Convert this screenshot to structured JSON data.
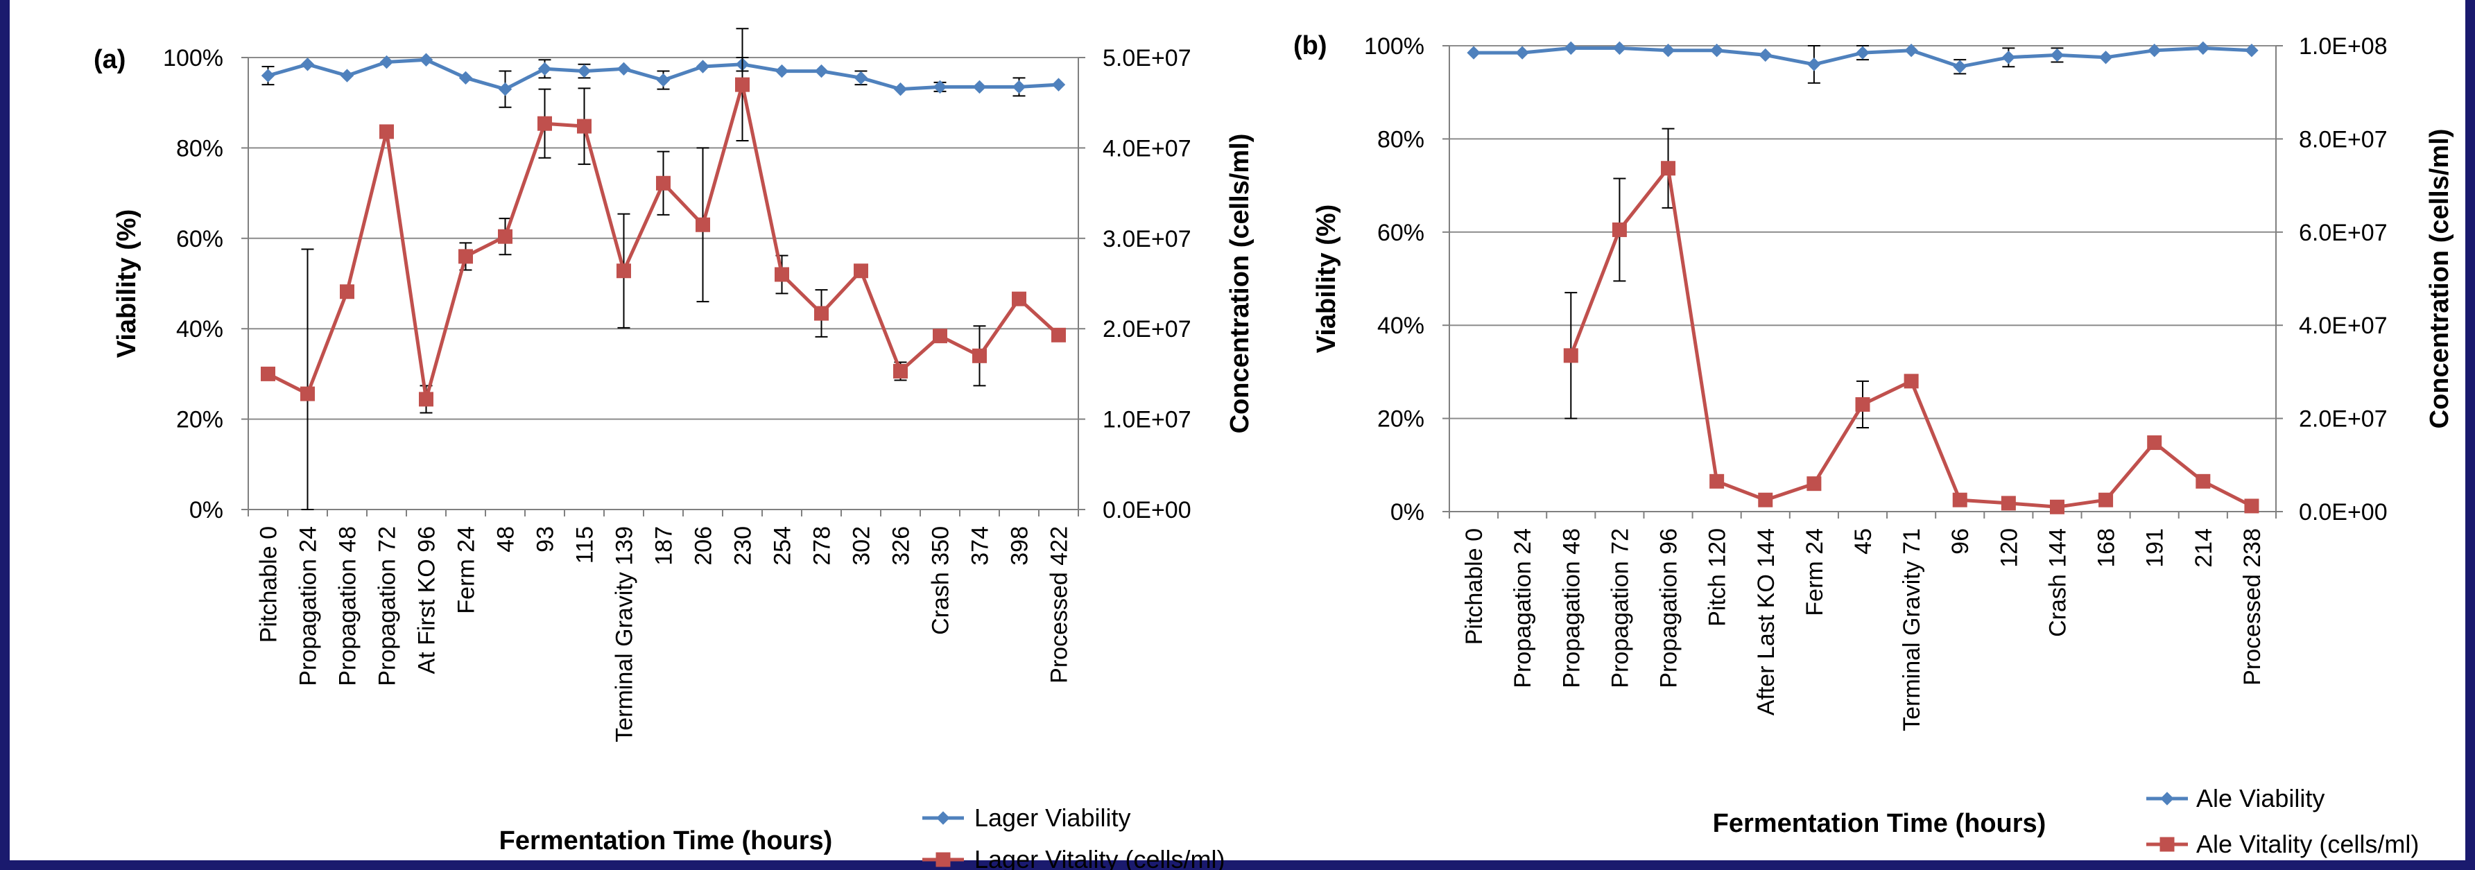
{
  "chart_data": [
    {
      "type": "line",
      "panel_label": "(a)",
      "xlabel": "Fermentation Time (hours)",
      "ylabel": "Viability (%)",
      "y2label": "Concentration (cells/ml)",
      "ylim": [
        0,
        100
      ],
      "y2lim": [
        0,
        50000000
      ],
      "y_ticks": [
        "0%",
        "20%",
        "40%",
        "60%",
        "80%",
        "100%"
      ],
      "y2_ticks": [
        "0.0E+00",
        "1.0E+07",
        "2.0E+07",
        "3.0E+07",
        "4.0E+07",
        "5.0E+07"
      ],
      "categories": [
        "Pitchable 0",
        "Propagation 24",
        "Propagation 48",
        "Propagation 72",
        "At First KO 96",
        "Ferm 24",
        "48",
        "93",
        "115",
        "Terminal Gravity 139",
        "187",
        "206",
        "230",
        "254",
        "278",
        "302",
        "326",
        "Crash 350",
        "374",
        "398",
        "Processed 422"
      ],
      "grid": "horizontal",
      "legend_position": "bottom-right",
      "series": [
        {
          "name": "Lager Viability",
          "axis": "left",
          "color": "#4f81bd",
          "marker": "diamond",
          "values": [
            96,
            98.5,
            96,
            99,
            99.5,
            95.5,
            93,
            97.5,
            97,
            97.5,
            95,
            98,
            98.5,
            97,
            97,
            95.5,
            93,
            93.5,
            93.5,
            93.5,
            94
          ],
          "error": [
            2,
            0,
            0,
            0,
            0,
            0,
            4,
            2,
            1.5,
            0,
            2,
            0,
            1.5,
            0,
            0,
            1.5,
            0,
            1,
            0,
            2,
            0
          ]
        },
        {
          "name": "Lager Vitality (cells/ml)",
          "axis": "right",
          "color": "#c0504d",
          "marker": "square",
          "values": [
            15000000,
            12800000,
            24100000,
            41800000,
            12200000,
            28000000,
            30200000,
            42700000,
            42400000,
            26400000,
            36100000,
            31500000,
            47000000,
            26000000,
            21700000,
            26400000,
            15300000,
            19200000,
            17000000,
            23300000,
            19300000
          ],
          "error": [
            0,
            16000000,
            0,
            400000,
            1500000,
            1500000,
            2000000,
            3800000,
            4200000,
            6300000,
            3500000,
            8500000,
            6200000,
            2100000,
            2600000,
            0,
            1000000,
            0,
            3300000,
            0,
            0
          ]
        }
      ]
    },
    {
      "type": "line",
      "panel_label": "(b)",
      "xlabel": "Fermentation Time (hours)",
      "ylabel": "Viability (%)",
      "y2label": "Concentration (cells/ml)",
      "ylim": [
        0,
        100
      ],
      "y2lim": [
        0,
        100000000
      ],
      "y_ticks": [
        "0%",
        "20%",
        "40%",
        "60%",
        "80%",
        "100%"
      ],
      "y2_ticks": [
        "0.0E+00",
        "2.0E+07",
        "4.0E+07",
        "6.0E+07",
        "8.0E+07",
        "1.0E+08"
      ],
      "categories": [
        "Pitchable 0",
        "Propagation 24",
        "Propagation 48",
        "Propagation 72",
        "Propagation 96",
        "Pitch 120",
        "After Last KO 144",
        "Ferm 24",
        "45",
        "Terminal Gravity 71",
        "96",
        "120",
        "Crash 144",
        "168",
        "191",
        "214",
        "Processed 238"
      ],
      "grid": "horizontal",
      "legend_position": "bottom-right",
      "series": [
        {
          "name": "Ale Viability",
          "axis": "left",
          "color": "#4f81bd",
          "marker": "diamond",
          "values": [
            98.5,
            98.5,
            99.5,
            99.5,
            99,
            99,
            98,
            96,
            98.5,
            99,
            95.5,
            97.5,
            98,
            97.5,
            99,
            99.5,
            99
          ],
          "error": [
            0,
            0,
            0,
            0,
            0,
            0,
            0,
            4,
            1.5,
            0,
            1.5,
            2,
            1.5,
            0,
            0,
            0,
            0
          ]
        },
        {
          "name": "Ale Vitality (cells/ml)",
          "axis": "right",
          "color": "#c0504d",
          "marker": "square",
          "values": [
            null,
            null,
            33500000,
            60500000,
            73700000,
            6500000,
            2500000,
            6000000,
            23000000,
            28000000,
            2500000,
            1800000,
            1000000,
            2500000,
            14800000,
            6500000,
            1200000
          ],
          "error": [
            0,
            0,
            13500000,
            11000000,
            8500000,
            0,
            0,
            0,
            5000000,
            0,
            0,
            0,
            0,
            0,
            0,
            0,
            0
          ]
        }
      ]
    }
  ]
}
